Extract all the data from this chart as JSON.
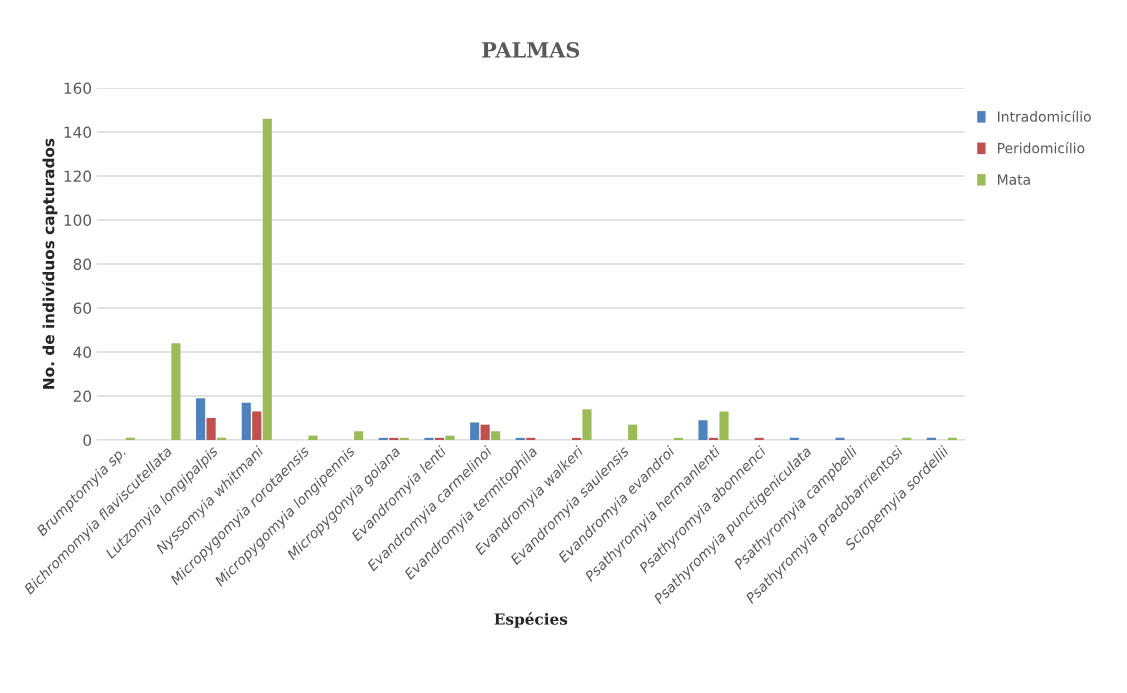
{
  "chart_data": {
    "type": "bar",
    "title": "PALMAS",
    "xlabel": "Espécies",
    "ylabel": "No. de indivíduos capturados",
    "categories": [
      "Brumptomyia sp.",
      "Bichromomyia flaviscutellata",
      "Lutzomyia longipalpis",
      "Nyssomyia whitmani",
      "Micropygomyia rorotaensis",
      "Micropygomyia longipennis",
      "Micropygonyia goiana",
      "Evandromyia lenti",
      "Evandromyia carmelinoi",
      "Evandromyia termitophila",
      "Evandromyia walkeri",
      "Evandromyia saulensis",
      "Evandromyia evandroi",
      "Psathyromyia hermanlenti",
      "Psathyromyia abonnenci",
      "Psathyromyia punctigeniculata",
      "Psathyromyia campbelli",
      "Psathyromyia pradobarrientosi",
      "Sciopemyia sordellii"
    ],
    "series": [
      {
        "name": "Intradomicílio",
        "color": "#4f81bd",
        "values": [
          0,
          0,
          19,
          17,
          0,
          0,
          1,
          1,
          8,
          1,
          0,
          0,
          0,
          9,
          0,
          1,
          1,
          0,
          1
        ]
      },
      {
        "name": "Peridomicílio",
        "color": "#c0504d",
        "values": [
          0,
          0,
          10,
          13,
          0,
          0,
          1,
          1,
          7,
          1,
          1,
          0,
          0,
          1,
          1,
          0,
          0,
          0,
          0
        ]
      },
      {
        "name": "Mata",
        "color": "#9bbb59",
        "values": [
          1,
          44,
          1,
          146,
          2,
          4,
          1,
          2,
          4,
          0,
          14,
          7,
          1,
          13,
          0,
          0,
          0,
          1,
          1
        ]
      }
    ],
    "ylim": [
      0,
      160
    ],
    "yticks": [
      0,
      20,
      40,
      60,
      80,
      100,
      120,
      140,
      160
    ],
    "grid": "y",
    "legend": "top right"
  }
}
